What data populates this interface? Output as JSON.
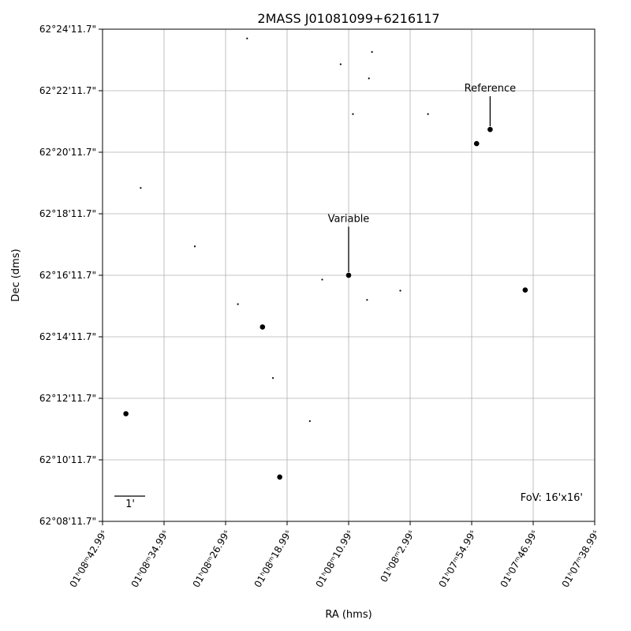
{
  "chart_data": {
    "type": "scatter",
    "title": "2MASS J01081099+6216117",
    "xlabel": "RA (hms)",
    "ylabel": "Dec (dms)",
    "xlim": [
      42.99,
      38.99
    ],
    "ylim": [
      8.0,
      24.0
    ],
    "x_axis_note": "RA seconds measured from 01h07m00s (values 38.99..42.99 range mapped as 01h08m42.99s .. 01h07m38.99s)",
    "x_ticks": [
      {
        "pos": 0,
        "label": "01ʰ08ᵐ42.99ˢ"
      },
      {
        "pos": 1,
        "label": "01ʰ08ᵐ34.99ˢ"
      },
      {
        "pos": 2,
        "label": "01ʰ08ᵐ26.99ˢ"
      },
      {
        "pos": 3,
        "label": "01ʰ08ᵐ18.99ˢ"
      },
      {
        "pos": 4,
        "label": "01ʰ08ᵐ10.99ˢ"
      },
      {
        "pos": 5,
        "label": "01ʰ08ᵐ2.99ˢ"
      },
      {
        "pos": 6,
        "label": "01ʰ07ᵐ54.99ˢ"
      },
      {
        "pos": 7,
        "label": "01ʰ07ᵐ46.99ˢ"
      },
      {
        "pos": 8,
        "label": "01ʰ07ᵐ38.99ˢ"
      }
    ],
    "y_ticks": [
      {
        "pos": 0,
        "label": "62°08'11.7\""
      },
      {
        "pos": 1,
        "label": "62°10'11.7\""
      },
      {
        "pos": 2,
        "label": "62°12'11.7\""
      },
      {
        "pos": 3,
        "label": "62°14'11.7\""
      },
      {
        "pos": 4,
        "label": "62°16'11.7\""
      },
      {
        "pos": 5,
        "label": "62°18'11.7\""
      },
      {
        "pos": 6,
        "label": "62°20'11.7\""
      },
      {
        "pos": 7,
        "label": "62°22'11.7\""
      },
      {
        "pos": 8,
        "label": "62°24'11.7\""
      }
    ],
    "grid": true,
    "stars": [
      {
        "x": 2.35,
        "y": 7.85,
        "mag": 1
      },
      {
        "x": 3.87,
        "y": 7.43,
        "mag": 1
      },
      {
        "x": 4.38,
        "y": 7.63,
        "mag": 1
      },
      {
        "x": 4.33,
        "y": 7.2,
        "mag": 1
      },
      {
        "x": 4.07,
        "y": 6.62,
        "mag": 1
      },
      {
        "x": 5.29,
        "y": 6.62,
        "mag": 1
      },
      {
        "x": 6.3,
        "y": 6.37,
        "mag": 3
      },
      {
        "x": 6.08,
        "y": 6.14,
        "mag": 3
      },
      {
        "x": 0.62,
        "y": 5.42,
        "mag": 1
      },
      {
        "x": 1.5,
        "y": 4.47,
        "mag": 1
      },
      {
        "x": 3.57,
        "y": 3.93,
        "mag": 1
      },
      {
        "x": 4.0,
        "y": 4.0,
        "mag": 3
      },
      {
        "x": 4.3,
        "y": 3.6,
        "mag": 1
      },
      {
        "x": 4.84,
        "y": 3.75,
        "mag": 1
      },
      {
        "x": 2.2,
        "y": 3.53,
        "mag": 1
      },
      {
        "x": 2.6,
        "y": 3.16,
        "mag": 3
      },
      {
        "x": 6.87,
        "y": 3.76,
        "mag": 3
      },
      {
        "x": 2.77,
        "y": 2.33,
        "mag": 1
      },
      {
        "x": 0.38,
        "y": 1.75,
        "mag": 3
      },
      {
        "x": 3.37,
        "y": 1.63,
        "mag": 1
      },
      {
        "x": 2.88,
        "y": 0.72,
        "mag": 3
      }
    ],
    "annotations": [
      {
        "label": "Variable",
        "target": {
          "x": 4.0,
          "y": 4.0
        },
        "label_pos": {
          "x": 4.0,
          "y": 4.88
        }
      },
      {
        "label": "Reference",
        "target": {
          "x": 6.3,
          "y": 6.37
        },
        "label_pos": {
          "x": 6.3,
          "y": 7.0
        }
      }
    ],
    "scale_bar": {
      "label": "1'"
    },
    "fov": "FoV: 16'x16'"
  }
}
